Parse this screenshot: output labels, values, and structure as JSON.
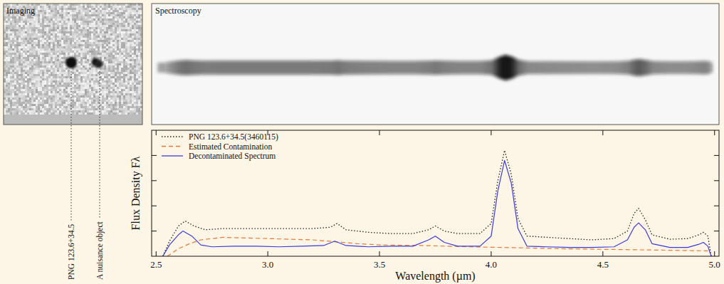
{
  "imaging": {
    "title": "Imaging",
    "labels": [
      "PNG 123.6+34.5",
      "A nuisance object"
    ]
  },
  "spectroscopy": {
    "title": "Spectroscopy"
  },
  "chart_data": {
    "type": "line",
    "x_label": "Wavelength (µm)",
    "y_label": "Flux Density Fλ",
    "xlim": [
      2.48,
      5.02
    ],
    "xticks": [
      2.5,
      {
        "value": 3,
        "label": "3.0"
      },
      3.5,
      {
        "value": 4,
        "label": "4.0"
      },
      4.5,
      {
        "value": 5,
        "label": "5.0"
      }
    ],
    "ylim": [
      0,
      10
    ],
    "yticks": [
      2,
      4,
      6,
      8
    ],
    "tick_labels": "x",
    "legend": "upper left",
    "series": [
      {
        "name": "PNG 123.6+34.5(3460115)",
        "color": "#222222",
        "line_style": "dotted",
        "x": [
          2.53,
          2.56,
          2.6,
          2.63,
          2.67,
          2.72,
          2.8,
          2.9,
          3.0,
          3.1,
          3.2,
          3.28,
          3.31,
          3.35,
          3.45,
          3.55,
          3.65,
          3.72,
          3.75,
          3.79,
          3.85,
          3.95,
          4.0,
          4.03,
          4.06,
          4.09,
          4.12,
          4.16,
          4.25,
          4.35,
          4.45,
          4.55,
          4.61,
          4.64,
          4.66,
          4.69,
          4.72,
          4.8,
          4.88,
          4.93,
          4.95,
          4.97,
          4.985
        ],
        "values": [
          0,
          1.2,
          2.4,
          2.8,
          2.4,
          2.1,
          2.2,
          2.2,
          2.2,
          2.2,
          2.2,
          2.3,
          2.6,
          2.1,
          1.9,
          1.8,
          1.8,
          2.1,
          2.4,
          2.0,
          1.8,
          1.8,
          2.6,
          6.0,
          8.4,
          6.5,
          3.0,
          1.6,
          1.5,
          1.4,
          1.3,
          1.4,
          2.0,
          3.4,
          3.8,
          2.9,
          1.7,
          1.35,
          1.4,
          1.7,
          1.9,
          1.6,
          0
        ]
      },
      {
        "name": "Estimated Contamination",
        "color": "#ee7733",
        "line_style": "dashed",
        "x": [
          2.55,
          2.6,
          2.65,
          2.7,
          2.8,
          2.9,
          3.0,
          3.1,
          3.2,
          3.3,
          3.4,
          3.5,
          3.7,
          3.9,
          4.1,
          4.3,
          4.5,
          4.7,
          4.9,
          4.97
        ],
        "values": [
          0,
          0.6,
          1.0,
          1.3,
          1.5,
          1.45,
          1.4,
          1.35,
          1.3,
          1.15,
          1.0,
          0.9,
          0.85,
          0.75,
          0.68,
          0.6,
          0.55,
          0.5,
          0.45,
          0.43
        ]
      },
      {
        "name": "Decontaminated Spectrum",
        "color": "#3a3ae0",
        "line_style": "solid",
        "x": [
          2.53,
          2.56,
          2.6,
          2.62,
          2.66,
          2.7,
          2.75,
          2.85,
          2.95,
          3.05,
          3.15,
          3.25,
          3.3,
          3.35,
          3.45,
          3.55,
          3.65,
          3.72,
          3.75,
          3.79,
          3.85,
          3.95,
          4.0,
          4.03,
          4.06,
          4.09,
          4.12,
          4.16,
          4.25,
          4.35,
          4.45,
          4.55,
          4.61,
          4.64,
          4.66,
          4.69,
          4.72,
          4.8,
          4.88,
          4.93,
          4.95,
          4.97,
          4.985
        ],
        "values": [
          0,
          0.9,
          1.7,
          2.0,
          1.6,
          0.9,
          0.75,
          0.8,
          0.8,
          0.75,
          0.8,
          0.85,
          1.2,
          0.85,
          0.75,
          0.8,
          0.8,
          1.3,
          1.6,
          1.1,
          0.8,
          0.8,
          1.6,
          5.2,
          7.6,
          5.8,
          2.2,
          0.8,
          0.75,
          0.7,
          0.7,
          0.75,
          1.3,
          2.3,
          2.65,
          2.1,
          1.0,
          0.7,
          0.7,
          0.95,
          1.1,
          0.8,
          0
        ]
      }
    ]
  }
}
